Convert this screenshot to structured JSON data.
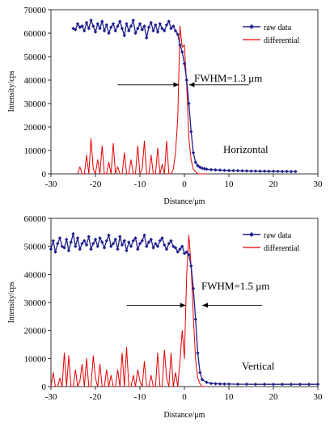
{
  "chart_data": [
    {
      "type": "line",
      "xlabel": "Distance/μm",
      "ylabel": "Intensity/cps",
      "xlim": [
        -30,
        30
      ],
      "ylim": [
        0,
        70000
      ],
      "xticks": [
        -30,
        -20,
        -10,
        0,
        10,
        20,
        30
      ],
      "yticks": [
        0,
        10000,
        20000,
        30000,
        40000,
        50000,
        60000,
        70000
      ],
      "grid": false,
      "legend_position": "top-right",
      "annotations": [
        {
          "text": "FWHM=1.3 μm",
          "x": 6,
          "y": 45000
        },
        {
          "text": "Horizontal",
          "x": 12,
          "y": 14000
        }
      ],
      "arrows": [
        {
          "from": [
            -15,
            38000
          ],
          "to": [
            -1.2,
            38000
          ]
        },
        {
          "from": [
            14.5,
            38000
          ],
          "to": [
            1.0,
            38000
          ]
        }
      ],
      "series": [
        {
          "name": "raw data",
          "color": "#1f1f8c",
          "marker": "diamond",
          "x": [
            -25.0,
            -24.5,
            -24.0,
            -23.5,
            -23.0,
            -22.5,
            -22.0,
            -21.5,
            -21.0,
            -20.5,
            -20.0,
            -19.5,
            -19.0,
            -18.5,
            -18.0,
            -17.5,
            -17.0,
            -16.5,
            -16.0,
            -15.5,
            -15.0,
            -14.5,
            -14.0,
            -13.5,
            -13.0,
            -12.5,
            -12.0,
            -11.5,
            -11.0,
            -10.5,
            -10.0,
            -9.5,
            -9.0,
            -8.5,
            -8.0,
            -7.5,
            -7.0,
            -6.5,
            -6.0,
            -5.5,
            -5.0,
            -4.5,
            -4.0,
            -3.5,
            -3.0,
            -2.5,
            -2.0,
            -1.5,
            -1.0,
            -0.5,
            0.0,
            0.5,
            1.0,
            1.5,
            2.0,
            2.5,
            3.0,
            3.5,
            4.0,
            4.5,
            5.0,
            6.0,
            7.0,
            8.0,
            9.0,
            10.0,
            11.0,
            12.0,
            13.0,
            14.0,
            15.0,
            16.0,
            17.0,
            18.0,
            19.0,
            20.0,
            21.0,
            22.0,
            23.0,
            24.0,
            25.0
          ],
          "y": [
            62000,
            61500,
            64000,
            62500,
            63000,
            61000,
            64500,
            62000,
            65500,
            63000,
            60500,
            64000,
            62000,
            65000,
            61000,
            63500,
            60000,
            62500,
            64000,
            61000,
            63000,
            65000,
            62000,
            59000,
            64000,
            61000,
            63000,
            65500,
            60000,
            62000,
            64000,
            61500,
            63000,
            58000,
            62500,
            64500,
            61000,
            63500,
            60500,
            64000,
            62000,
            61000,
            63500,
            65000,
            62000,
            63000,
            61000,
            59500,
            55000,
            52000,
            47000,
            40000,
            30000,
            18000,
            9000,
            5000,
            3500,
            2800,
            2400,
            2200,
            2000,
            1800,
            1700,
            1600,
            1500,
            1450,
            1400,
            1350,
            1300,
            1250,
            1200,
            1200,
            1150,
            1150,
            1100,
            1100,
            1100,
            1050,
            1050,
            1000,
            1000
          ]
        },
        {
          "name": "differential",
          "color": "#e60000",
          "marker": "none",
          "x": [
            -24,
            -23.5,
            -23,
            -22.5,
            -22,
            -21.5,
            -21,
            -20.5,
            -20,
            -19.5,
            -19,
            -18.5,
            -18,
            -17.5,
            -17,
            -16.5,
            -16,
            -15.5,
            -15,
            -14.5,
            -14,
            -13.5,
            -13,
            -12.5,
            -12,
            -11.5,
            -11,
            -10.5,
            -10,
            -9.5,
            -9,
            -8.5,
            -8,
            -7.5,
            -7,
            -6.5,
            -6,
            -5.5,
            -5,
            -4.5,
            -4,
            -3.5,
            -3,
            -2.5,
            -2,
            -1.5,
            -1,
            -0.5,
            0,
            0.5,
            1,
            1.5,
            2,
            2.5,
            3,
            3.5,
            4,
            5
          ],
          "y": [
            0,
            3000,
            0,
            0,
            8000,
            0,
            15000,
            2000,
            0,
            6000,
            0,
            12000,
            0,
            0,
            5000,
            0,
            13000,
            0,
            3000,
            0,
            0,
            9000,
            0,
            0,
            6000,
            0,
            0,
            12000,
            0,
            2000,
            14000,
            0,
            0,
            8000,
            0,
            0,
            11000,
            0,
            4000,
            0,
            14000,
            0,
            0,
            2000,
            9000,
            24000,
            63000,
            54000,
            55000,
            38000,
            15000,
            6000,
            2000,
            1000,
            0,
            0,
            0,
            0
          ]
        }
      ]
    },
    {
      "type": "line",
      "xlabel": "Distance/μm",
      "ylabel": "Intensity/cps",
      "xlim": [
        -30,
        30
      ],
      "ylim": [
        0,
        60000
      ],
      "xticks": [
        -30,
        -20,
        -10,
        0,
        10,
        20,
        30
      ],
      "yticks": [
        0,
        10000,
        20000,
        30000,
        40000,
        50000,
        60000
      ],
      "grid": false,
      "legend_position": "top-right",
      "annotations": [
        {
          "text": "FWHM=1.5 μm",
          "x": 8.5,
          "y": 35000
        },
        {
          "text": "Vertical",
          "x": 16,
          "y": 7000
        }
      ],
      "arrows": [
        {
          "from": [
            -13,
            29000
          ],
          "to": [
            0.3,
            29000
          ]
        },
        {
          "from": [
            17.5,
            29000
          ],
          "to": [
            4.0,
            29000
          ]
        }
      ],
      "series": [
        {
          "name": "raw data",
          "color": "#1f1f8c",
          "marker": "diamond",
          "x": [
            -30.0,
            -29.5,
            -29.0,
            -28.5,
            -28.0,
            -27.5,
            -27.0,
            -26.5,
            -26.0,
            -25.5,
            -25.0,
            -24.5,
            -24.0,
            -23.5,
            -23.0,
            -22.5,
            -22.0,
            -21.5,
            -21.0,
            -20.5,
            -20.0,
            -19.5,
            -19.0,
            -18.5,
            -18.0,
            -17.5,
            -17.0,
            -16.5,
            -16.0,
            -15.5,
            -15.0,
            -14.5,
            -14.0,
            -13.5,
            -13.0,
            -12.5,
            -12.0,
            -11.5,
            -11.0,
            -10.5,
            -10.0,
            -9.5,
            -9.0,
            -8.5,
            -8.0,
            -7.5,
            -7.0,
            -6.5,
            -6.0,
            -5.5,
            -5.0,
            -4.5,
            -4.0,
            -3.5,
            -3.0,
            -2.5,
            -2.0,
            -1.5,
            -1.0,
            -0.5,
            0.0,
            0.5,
            1.0,
            1.5,
            2.0,
            2.5,
            3.0,
            3.5,
            4.0,
            5.0,
            6.0,
            7.0,
            8.0,
            9.0,
            10.0,
            12.0,
            14.0,
            16.0,
            18.0,
            20.0,
            22.0,
            24.0,
            26.0,
            28.0,
            30.0
          ],
          "y": [
            49000,
            52000,
            48000,
            51000,
            53000,
            50000,
            49500,
            52500,
            48500,
            51500,
            54500,
            50000,
            53000,
            49000,
            51000,
            52000,
            50500,
            53500,
            49000,
            51000,
            52500,
            50000,
            53000,
            51500,
            49500,
            52000,
            54000,
            50000,
            51000,
            52500,
            49000,
            53500,
            50500,
            52000,
            48500,
            51500,
            50000,
            52000,
            53000,
            49000,
            51000,
            52000,
            54000,
            50000,
            51500,
            52500,
            49500,
            51000,
            50000,
            52000,
            53000,
            50500,
            49000,
            51000,
            52000,
            50000,
            49500,
            48000,
            49000,
            50000,
            47500,
            48000,
            47000,
            43000,
            35000,
            24000,
            12000,
            5000,
            2500,
            1500,
            1100,
            1000,
            950,
            900,
            900,
            850,
            850,
            800,
            800,
            800,
            800,
            800,
            800,
            800,
            800
          ]
        },
        {
          "name": "differential",
          "color": "#e60000",
          "marker": "none",
          "x": [
            -30,
            -29.5,
            -29,
            -28.5,
            -28,
            -27.5,
            -27,
            -26.5,
            -26,
            -25.5,
            -25,
            -24.5,
            -24,
            -23.5,
            -23,
            -22.5,
            -22,
            -21.5,
            -21,
            -20.5,
            -20,
            -19.5,
            -19,
            -18.5,
            -18,
            -17.5,
            -17,
            -16.5,
            -16,
            -15.5,
            -15,
            -14.5,
            -14,
            -13.5,
            -13,
            -12.5,
            -12,
            -11.5,
            -11,
            -10.5,
            -10,
            -9.5,
            -9,
            -8.5,
            -8,
            -7.5,
            -7,
            -6.5,
            -6,
            -5.5,
            -5,
            -4.5,
            -4,
            -3.5,
            -3,
            -2.5,
            -2,
            -1.5,
            -1,
            -0.5,
            0,
            0.5,
            1,
            1.5,
            2,
            2.5,
            3,
            3.5,
            4,
            5
          ],
          "y": [
            0,
            5000,
            0,
            0,
            3000,
            0,
            12000,
            0,
            11000,
            0,
            0,
            6000,
            0,
            2000,
            8000,
            0,
            10000,
            0,
            0,
            11000,
            3000,
            0,
            8000,
            0,
            0,
            6000,
            0,
            4000,
            0,
            0,
            6000,
            0,
            12000,
            0,
            14000,
            0,
            0,
            4000,
            0,
            6000,
            2000,
            0,
            9000,
            0,
            0,
            4000,
            0,
            0,
            12000,
            0,
            0,
            13000,
            3000,
            0,
            12000,
            0,
            5000,
            0,
            9000,
            20000,
            10000,
            40000,
            54000,
            43000,
            25000,
            10000,
            3000,
            1000,
            0,
            0
          ]
        }
      ]
    }
  ]
}
